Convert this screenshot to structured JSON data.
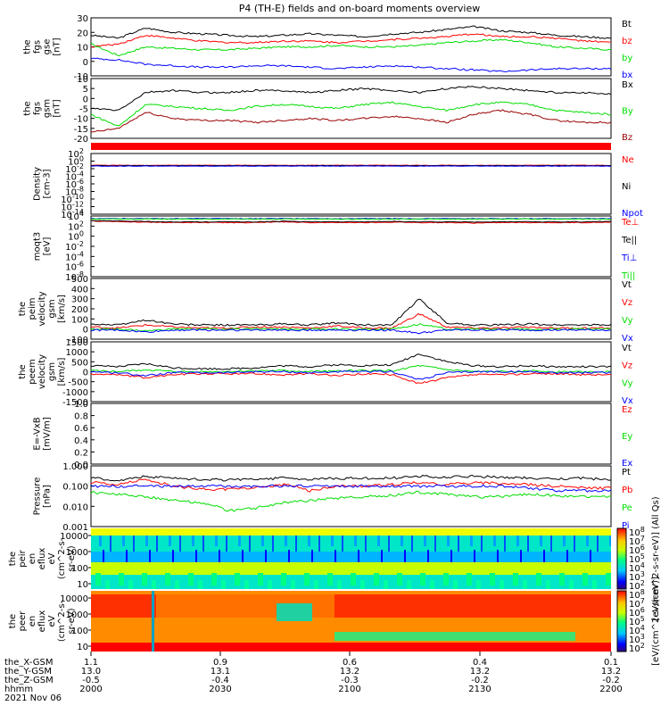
{
  "title": "P4 (TH-E) fields and on-board moments overview",
  "colors": {
    "black": "#000000",
    "red": "#ff0000",
    "green": "#00dd00",
    "blue": "#0000ff",
    "darkred": "#990000",
    "cyan": "#00c8ff"
  },
  "chart_data": [
    {
      "type": "line",
      "ylabel": [
        "the",
        "fgs",
        "gse",
        "[nT]"
      ],
      "ylim": [
        -10,
        30
      ],
      "yticks": [
        "30",
        "20",
        "10",
        "0",
        "-10"
      ],
      "series": [
        {
          "name": "Bt",
          "color": "black",
          "values": [
            18,
            16,
            23,
            20,
            19,
            18,
            17,
            18,
            19,
            18,
            17,
            19,
            20,
            22,
            24,
            21,
            20,
            18,
            17,
            16
          ]
        },
        {
          "name": "bz",
          "color": "red",
          "values": [
            10,
            12,
            18,
            16,
            14,
            13,
            13,
            14,
            14,
            13,
            14,
            15,
            16,
            17,
            19,
            17,
            17,
            16,
            14,
            13
          ]
        },
        {
          "name": "by",
          "color": "green",
          "values": [
            12,
            4,
            10,
            9,
            8,
            8,
            9,
            10,
            10,
            11,
            10,
            10,
            11,
            13,
            14,
            15,
            13,
            10,
            9,
            8
          ]
        },
        {
          "name": "bx",
          "color": "blue",
          "values": [
            2,
            1,
            -2,
            -3,
            -4,
            -4,
            -3,
            -3,
            -4,
            -5,
            -4,
            -3,
            -4,
            -5,
            -6,
            -7,
            -6,
            -5,
            -5,
            -5
          ]
        }
      ]
    },
    {
      "type": "line",
      "ylabel": [
        "the",
        "fgs",
        "gsm",
        "[nT]"
      ],
      "ylim": [
        -20,
        10
      ],
      "yticks": [
        "10",
        "5",
        "0",
        "-5",
        "-10",
        "-15",
        "-20"
      ],
      "series": [
        {
          "name": "Bx",
          "color": "black",
          "values": [
            -5,
            -6,
            3,
            4,
            3,
            3,
            4,
            4,
            3,
            4,
            5,
            4,
            3,
            5,
            6,
            5,
            4,
            3,
            3,
            2
          ]
        },
        {
          "name": "By",
          "color": "green",
          "values": [
            -8,
            -14,
            -3,
            -4,
            -5,
            -6,
            -4,
            -3,
            -4,
            -5,
            -3,
            -2,
            -4,
            -6,
            -3,
            -2,
            -3,
            -6,
            -7,
            -8
          ]
        },
        {
          "name": "Bz",
          "color": "darkred",
          "values": [
            -17,
            -15,
            -7,
            -10,
            -11,
            -11,
            -12,
            -11,
            -10,
            -11,
            -10,
            -9,
            -10,
            -12,
            -8,
            -6,
            -8,
            -11,
            -12,
            -12
          ]
        }
      ]
    },
    {
      "type": "line",
      "ylabel": [
        "Density",
        "[cm-3]"
      ],
      "log": true,
      "ylim_exp": [
        -14,
        3
      ],
      "yticks": [
        "10",
        "10",
        "10",
        "10",
        "10",
        "10",
        "10",
        "10",
        "10"
      ],
      "ytick_exps": [
        "2",
        "0",
        "-2",
        "-4",
        "-6",
        "-8",
        "-10",
        "-12",
        "-14"
      ],
      "series": [
        {
          "name": "Ne",
          "color": "red",
          "values": [
            0.5,
            0.5,
            0.45,
            0.5,
            0.5,
            0.5,
            0.5,
            0.48,
            0.5,
            0.5,
            0.5,
            0.5,
            0.5,
            0.5,
            0.45,
            0.5,
            0.5,
            0.5,
            0.5,
            0.5
          ]
        },
        {
          "name": "Ni",
          "color": "black",
          "values": [
            0.4,
            0.4,
            0.4,
            0.4,
            0.4,
            0.4,
            0.4,
            0.4,
            0.4,
            0.4,
            0.4,
            0.4,
            0.4,
            0.4,
            0.4,
            0.4,
            0.4,
            0.4,
            0.4,
            0.4
          ]
        },
        {
          "name": "Npot",
          "color": "blue",
          "values": [
            0.3,
            0.3,
            0.3,
            0.3,
            0.3,
            0.3,
            0.3,
            0.3,
            0.3,
            0.3,
            0.3,
            0.3,
            0.3,
            0.3,
            0.3,
            0.3,
            0.3,
            0.3,
            0.3,
            0.3
          ]
        }
      ]
    },
    {
      "type": "line",
      "ylabel": [
        "moqt3",
        "[eV]"
      ],
      "log": true,
      "ylim_exp": [
        -8,
        4
      ],
      "yticks": [
        "10",
        "10",
        "10",
        "10",
        "10",
        "10",
        "10"
      ],
      "ytick_exps": [
        "4",
        "2",
        "0",
        "-2",
        "-4",
        "-6",
        "-8"
      ],
      "series": [
        {
          "name": "Te⊥",
          "color": "red",
          "values": [
            1000,
            800,
            600,
            500,
            500,
            500,
            500,
            700,
            500,
            500,
            500,
            600,
            500,
            500,
            400,
            500,
            500,
            500,
            500,
            600
          ]
        },
        {
          "name": "Te||",
          "color": "black",
          "values": [
            1200,
            1000,
            800,
            700,
            700,
            700,
            700,
            900,
            700,
            700,
            700,
            800,
            700,
            700,
            600,
            700,
            700,
            700,
            700,
            800
          ]
        },
        {
          "name": "Ti⊥",
          "color": "blue",
          "values": [
            3000,
            3000,
            3000,
            3000,
            3000,
            3000,
            3000,
            3000,
            3000,
            3000,
            3000,
            3000,
            3000,
            3000,
            3000,
            3000,
            3000,
            3000,
            3000,
            3000
          ]
        },
        {
          "name": "Ti||",
          "color": "green",
          "values": [
            2500,
            2500,
            2500,
            2500,
            2500,
            2500,
            2500,
            2500,
            2500,
            2500,
            2500,
            2500,
            2500,
            2500,
            2500,
            2500,
            2500,
            2500,
            2500,
            2500
          ]
        }
      ]
    },
    {
      "type": "line",
      "ylabel": [
        "the",
        "peim",
        "velocity",
        "gsm",
        "[km/s]"
      ],
      "ylim": [
        -100,
        500
      ],
      "yticks": [
        "500",
        "400",
        "300",
        "200",
        "100",
        "0",
        "-100"
      ],
      "series": [
        {
          "name": "Vt",
          "color": "black",
          "values": [
            50,
            40,
            90,
            50,
            40,
            40,
            40,
            50,
            40,
            60,
            40,
            40,
            300,
            60,
            40,
            40,
            50,
            40,
            40,
            40
          ]
        },
        {
          "name": "Vz",
          "color": "red",
          "values": [
            20,
            10,
            40,
            20,
            10,
            10,
            20,
            20,
            10,
            30,
            10,
            10,
            150,
            20,
            10,
            10,
            20,
            10,
            10,
            10
          ]
        },
        {
          "name": "Vy",
          "color": "green",
          "values": [
            0,
            0,
            -20,
            0,
            0,
            0,
            0,
            0,
            0,
            0,
            0,
            0,
            50,
            0,
            0,
            0,
            0,
            0,
            0,
            0
          ]
        },
        {
          "name": "Vx",
          "color": "blue",
          "values": [
            -10,
            -10,
            -30,
            -10,
            -10,
            -10,
            -10,
            -10,
            -10,
            -10,
            -10,
            -10,
            -40,
            -10,
            -10,
            -10,
            -10,
            -10,
            -10,
            -10
          ]
        }
      ]
    },
    {
      "type": "line",
      "ylabel": [
        "the",
        "peem",
        "velocity",
        "gsm",
        "[km/s]"
      ],
      "ylim": [
        -1500,
        1500
      ],
      "yticks": [
        "1500",
        "1000",
        "500",
        "0",
        "-500",
        "-1000",
        "-1500"
      ],
      "series": [
        {
          "name": "Vt",
          "color": "black",
          "values": [
            300,
            250,
            400,
            200,
            150,
            150,
            200,
            300,
            250,
            350,
            300,
            350,
            900,
            500,
            300,
            250,
            300,
            250,
            250,
            250
          ]
        },
        {
          "name": "Vz",
          "color": "red",
          "values": [
            -100,
            -150,
            -300,
            -150,
            -100,
            -100,
            -100,
            -150,
            -100,
            -200,
            -100,
            -150,
            -600,
            -300,
            -150,
            -150,
            -100,
            -100,
            -150,
            -150
          ]
        },
        {
          "name": "Vy",
          "color": "green",
          "values": [
            50,
            0,
            100,
            0,
            0,
            0,
            50,
            50,
            0,
            50,
            50,
            50,
            300,
            100,
            0,
            0,
            50,
            0,
            0,
            0
          ]
        },
        {
          "name": "Vx",
          "color": "blue",
          "values": [
            0,
            -50,
            -200,
            -50,
            -50,
            -50,
            0,
            0,
            -50,
            0,
            0,
            0,
            -400,
            -50,
            0,
            0,
            0,
            -50,
            -50,
            -50
          ]
        }
      ]
    },
    {
      "type": "line",
      "ylabel": [
        "E=-VxB",
        "[mV/m]"
      ],
      "ylim": [
        0,
        1
      ],
      "yticks": [
        "1.0",
        "0.8",
        "0.6",
        "0.4",
        "0.2",
        "0.0"
      ],
      "series": [
        {
          "name": "Ez",
          "color": "red",
          "values": []
        },
        {
          "name": "Ey",
          "color": "green",
          "values": []
        },
        {
          "name": "Ex",
          "color": "blue",
          "values": []
        }
      ]
    },
    {
      "type": "line",
      "ylabel": [
        "Pressure",
        "[nPa]"
      ],
      "log": true,
      "ylim_exp": [
        -3,
        0
      ],
      "yticks": [
        "1.000",
        "0.100",
        "0.010",
        "0.001"
      ],
      "series": [
        {
          "name": "Pt",
          "color": "black",
          "values": [
            0.25,
            0.2,
            0.3,
            0.25,
            0.22,
            0.2,
            0.22,
            0.25,
            0.22,
            0.25,
            0.25,
            0.25,
            0.3,
            0.28,
            0.3,
            0.28,
            0.25,
            0.22,
            0.25,
            0.2
          ]
        },
        {
          "name": "Pb",
          "color": "red",
          "values": [
            0.15,
            0.12,
            0.2,
            0.1,
            0.07,
            0.07,
            0.08,
            0.12,
            0.06,
            0.1,
            0.1,
            0.12,
            0.15,
            0.12,
            0.15,
            0.14,
            0.12,
            0.1,
            0.08,
            0.08
          ]
        },
        {
          "name": "Pe",
          "color": "green",
          "values": [
            0.05,
            0.04,
            0.03,
            0.02,
            0.015,
            0.006,
            0.008,
            0.015,
            0.02,
            0.025,
            0.03,
            0.035,
            0.05,
            0.04,
            0.03,
            0.03,
            0.04,
            0.035,
            0.03,
            0.03
          ]
        },
        {
          "name": "Pi",
          "color": "blue",
          "values": [
            0.1,
            0.1,
            0.1,
            0.1,
            0.1,
            0.1,
            0.1,
            0.1,
            0.1,
            0.1,
            0.1,
            0.1,
            0.1,
            0.1,
            0.1,
            0.1,
            0.08,
            0.06,
            0.06,
            0.06
          ]
        }
      ]
    },
    {
      "type": "heatmap",
      "ylabel": [
        "the",
        "peir",
        "en",
        "eflux",
        "eV",
        "(cm^2-s-",
        "sr-eV)"
      ],
      "yticks": [
        "10000",
        "1000",
        "100",
        "10"
      ],
      "colorbar_label": "[eV/(cm^2-s-sr-eV)] (All Qs)",
      "colorbar_ticks": [
        "8",
        "7",
        "6",
        "5",
        "4",
        "3",
        "2"
      ]
    },
    {
      "type": "heatmap",
      "ylabel": [
        "the",
        "peer",
        "en",
        "eflux",
        "eV",
        "(cm^2-s-",
        "sr-eV)"
      ],
      "yticks": [
        "10000",
        "1000",
        "100",
        "10"
      ],
      "colorbar_label": "[eV/(cm^2-s-sr-eV)]",
      "colorbar_ticks": [
        "8",
        "7",
        "6",
        "5",
        "4",
        "3",
        "2"
      ]
    }
  ],
  "x_axis": {
    "rows": [
      {
        "label": "the_X-GSM",
        "values": [
          "1.1",
          "0.9",
          "0.6",
          "0.4",
          "0.1"
        ]
      },
      {
        "label": "the_Y-GSM",
        "values": [
          "13.0",
          "13.1",
          "13.2",
          "13.2",
          "13.2"
        ]
      },
      {
        "label": "the_Z-GSM",
        "values": [
          "-0.5",
          "-0.4",
          "-0.3",
          "-0.2",
          "-0.2"
        ]
      },
      {
        "label": "hhmm",
        "values": [
          "2000",
          "2030",
          "2100",
          "2130",
          "2200"
        ]
      }
    ],
    "date": "2021 Nov 06"
  }
}
